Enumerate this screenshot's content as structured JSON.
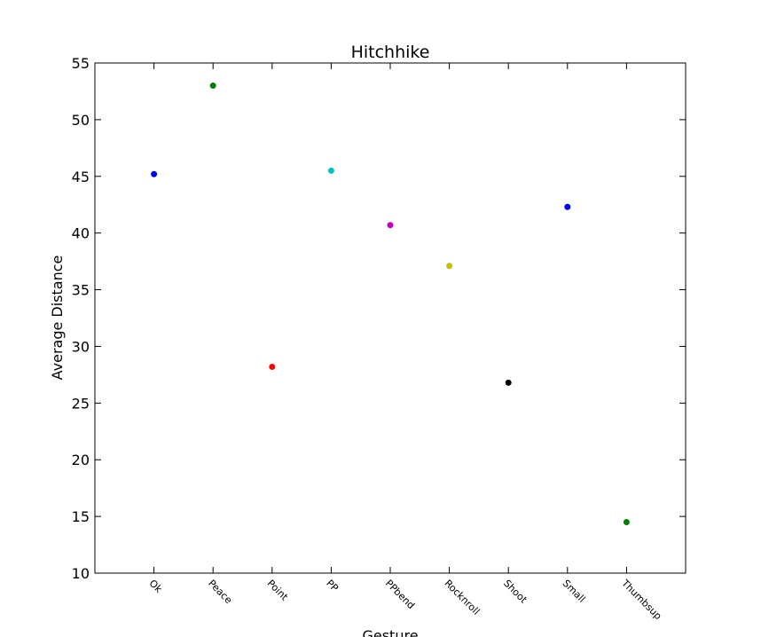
{
  "chart_data": {
    "type": "scatter",
    "title": "Hitchhike",
    "xlabel": "Gesture",
    "ylabel": "Average Distance",
    "categories": [
      "Ok",
      "Peace",
      "Point",
      "PP",
      "PPbend",
      "Rocknroll",
      "Shoot",
      "Small",
      "Thumbsup"
    ],
    "values": [
      45.2,
      53.0,
      28.2,
      45.5,
      40.7,
      37.1,
      26.8,
      42.3,
      14.5
    ],
    "point_colors": [
      "#0000ff",
      "#008000",
      "#ff0000",
      "#00bfbf",
      "#bf00bf",
      "#bfbf00",
      "#000000",
      "#0000ff",
      "#008000"
    ],
    "ylim": [
      10,
      55
    ],
    "yticks": [
      10,
      15,
      20,
      25,
      30,
      35,
      40,
      45,
      50,
      55
    ],
    "grid": false,
    "legend": "none"
  }
}
